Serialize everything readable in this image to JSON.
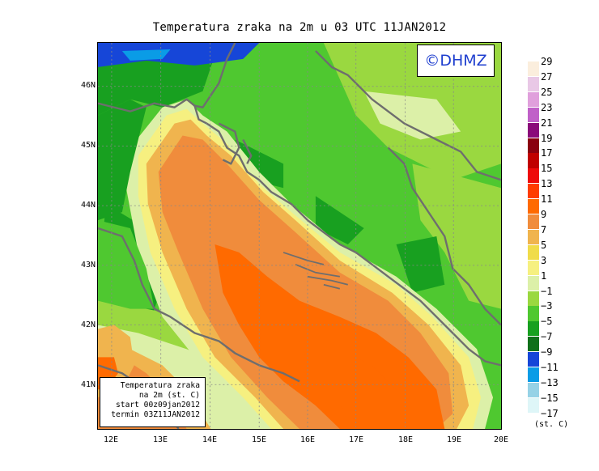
{
  "title": "Temperatura zraka na 2m u 03 UTC 11JAN2012",
  "watermark": "©DHMZ",
  "info_box": {
    "line1": "Temperatura zraka",
    "line2": "na 2m (st. C)",
    "line3": "start 00z09jan2012",
    "line4": "termin 03Z11JAN2012"
  },
  "lat_labels": [
    "46N",
    "45N",
    "44N",
    "43N",
    "42N",
    "41N"
  ],
  "lon_labels": [
    "12E",
    "13E",
    "14E",
    "15E",
    "16E",
    "17E",
    "18E",
    "19E",
    "20E"
  ],
  "legend": {
    "labels": [
      "29",
      "27",
      "25",
      "23",
      "21",
      "19",
      "17",
      "15",
      "13",
      "11",
      "9",
      "7",
      "5",
      "3",
      "1",
      "−1",
      "−3",
      "−5",
      "−7",
      "−9",
      "−11",
      "−13",
      "−15",
      "−17"
    ],
    "colors": [
      "#fbeedd",
      "#e9c8e6",
      "#e0a0dc",
      "#c060c8",
      "#8a0a7a",
      "#8a0010",
      "#c00000",
      "#ee0a0a",
      "#ff3c00",
      "#ff6a00",
      "#f08c3c",
      "#f0b44e",
      "#f0dc4a",
      "#f6f080",
      "#dcf0a8",
      "#9ad840",
      "#4fc830",
      "#18a020",
      "#10701a",
      "#1646d8",
      "#0a9ce6",
      "#96d2e6",
      "#def6f8"
    ],
    "units": "(st. C)"
  },
  "map": {
    "region": "Adriatic Sea / Croatia",
    "lat_range": [
      40.3,
      46.8
    ],
    "lon_range": [
      11.8,
      20.0
    ],
    "variable": "2m air temperature (st. C)"
  }
}
